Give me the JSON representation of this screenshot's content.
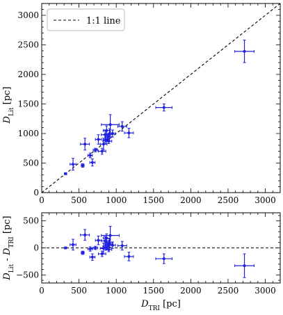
{
  "chart_data": [
    {
      "type": "scatter",
      "title": "",
      "xlabel": "",
      "ylabel": {
        "main": "D",
        "sub": "Lit",
        "unit": " [pc]"
      },
      "xlim": [
        0,
        3200
      ],
      "ylim": [
        0,
        3200
      ],
      "xticks": [
        0,
        500,
        1000,
        1500,
        2000,
        2500,
        3000
      ],
      "xtick_labels": [
        "0",
        "500",
        "1000",
        "1500",
        "2000",
        "2500",
        "3000"
      ],
      "yticks": [
        0,
        500,
        1000,
        1500,
        2000,
        2500,
        3000
      ],
      "ytick_labels": [
        "0",
        "500",
        "1000",
        "1500",
        "2000",
        "2500",
        "3000"
      ],
      "grid": false,
      "legend": {
        "position": "top-left",
        "entries": [
          {
            "label": "1:1 line",
            "style": "dashed",
            "color": "#000000"
          }
        ]
      },
      "reference_line": {
        "label": "1:1 line",
        "from": [
          0,
          0
        ],
        "to": [
          3200,
          3200
        ]
      },
      "series": [
        {
          "color": "#1f1fe0",
          "points": [
            {
              "x": 320,
              "y": 320,
              "xerr": 15,
              "yerr": 15
            },
            {
              "x": 420,
              "y": 480,
              "xerr": 40,
              "yerr": 100
            },
            {
              "x": 550,
              "y": 460,
              "xerr": 20,
              "yerr": 30
            },
            {
              "x": 580,
              "y": 820,
              "xerr": 60,
              "yerr": 100
            },
            {
              "x": 650,
              "y": 630,
              "xerr": 30,
              "yerr": 40
            },
            {
              "x": 680,
              "y": 510,
              "xerr": 35,
              "yerr": 60
            },
            {
              "x": 720,
              "y": 720,
              "xerr": 30,
              "yerr": 30
            },
            {
              "x": 760,
              "y": 900,
              "xerr": 40,
              "yerr": 80
            },
            {
              "x": 810,
              "y": 700,
              "xerr": 50,
              "yerr": 50
            },
            {
              "x": 830,
              "y": 820,
              "xerr": 45,
              "yerr": 100
            },
            {
              "x": 850,
              "y": 980,
              "xerr": 50,
              "yerr": 80
            },
            {
              "x": 860,
              "y": 880,
              "xerr": 40,
              "yerr": 60
            },
            {
              "x": 870,
              "y": 1050,
              "xerr": 45,
              "yerr": 80
            },
            {
              "x": 880,
              "y": 900,
              "xerr": 30,
              "yerr": 40
            },
            {
              "x": 890,
              "y": 950,
              "xerr": 35,
              "yerr": 50
            },
            {
              "x": 900,
              "y": 870,
              "xerr": 40,
              "yerr": 40
            },
            {
              "x": 910,
              "y": 1000,
              "xerr": 45,
              "yerr": 80
            },
            {
              "x": 920,
              "y": 1150,
              "xerr": 120,
              "yerr": 170
            },
            {
              "x": 950,
              "y": 1000,
              "xerr": 40,
              "yerr": 60
            },
            {
              "x": 1080,
              "y": 1120,
              "xerr": 60,
              "yerr": 80
            },
            {
              "x": 1170,
              "y": 1010,
              "xerr": 60,
              "yerr": 80
            },
            {
              "x": 1640,
              "y": 1440,
              "xerr": 110,
              "yerr": 60
            },
            {
              "x": 2720,
              "y": 2390,
              "xerr": 130,
              "yerr": 190
            }
          ]
        }
      ]
    },
    {
      "type": "scatter",
      "title": "",
      "xlabel": {
        "main": "D",
        "sub": "TRI",
        "unit": " [pc]"
      },
      "ylabel": {
        "main": "D",
        "sub": "Lit",
        "mid": " - D",
        "sub2": "TRI",
        "unit": " [pc]"
      },
      "xlim": [
        0,
        3200
      ],
      "ylim": [
        -650,
        650
      ],
      "xticks": [
        0,
        500,
        1000,
        1500,
        2000,
        2500,
        3000
      ],
      "xtick_labels": [
        "0",
        "500",
        "1000",
        "1500",
        "2000",
        "2500",
        "3000"
      ],
      "yticks": [
        -500,
        0,
        500
      ],
      "ytick_labels": [
        "−500",
        "0",
        "500"
      ],
      "grid": false,
      "reference_line": {
        "label": "",
        "from": [
          0,
          0
        ],
        "to": [
          3200,
          0
        ]
      },
      "series": [
        {
          "color": "#1f1fe0",
          "points": [
            {
              "x": 320,
              "y": 0,
              "xerr": 15,
              "yerr": 15
            },
            {
              "x": 420,
              "y": 60,
              "xerr": 40,
              "yerr": 100
            },
            {
              "x": 550,
              "y": -90,
              "xerr": 20,
              "yerr": 30
            },
            {
              "x": 580,
              "y": 240,
              "xerr": 60,
              "yerr": 100
            },
            {
              "x": 650,
              "y": -20,
              "xerr": 30,
              "yerr": 40
            },
            {
              "x": 680,
              "y": -170,
              "xerr": 35,
              "yerr": 60
            },
            {
              "x": 720,
              "y": 0,
              "xerr": 30,
              "yerr": 30
            },
            {
              "x": 760,
              "y": 140,
              "xerr": 40,
              "yerr": 80
            },
            {
              "x": 810,
              "y": -110,
              "xerr": 50,
              "yerr": 50
            },
            {
              "x": 830,
              "y": -10,
              "xerr": 45,
              "yerr": 100
            },
            {
              "x": 850,
              "y": 130,
              "xerr": 50,
              "yerr": 80
            },
            {
              "x": 860,
              "y": 20,
              "xerr": 40,
              "yerr": 60
            },
            {
              "x": 870,
              "y": 180,
              "xerr": 45,
              "yerr": 80
            },
            {
              "x": 880,
              "y": 20,
              "xerr": 30,
              "yerr": 40
            },
            {
              "x": 890,
              "y": 60,
              "xerr": 35,
              "yerr": 50
            },
            {
              "x": 900,
              "y": -30,
              "xerr": 40,
              "yerr": 40
            },
            {
              "x": 910,
              "y": 90,
              "xerr": 45,
              "yerr": 80
            },
            {
              "x": 920,
              "y": 230,
              "xerr": 120,
              "yerr": 170
            },
            {
              "x": 950,
              "y": 50,
              "xerr": 40,
              "yerr": 60
            },
            {
              "x": 1080,
              "y": 40,
              "xerr": 60,
              "yerr": 80
            },
            {
              "x": 1170,
              "y": -160,
              "xerr": 60,
              "yerr": 80
            },
            {
              "x": 1640,
              "y": -200,
              "xerr": 110,
              "yerr": 90
            },
            {
              "x": 2720,
              "y": -330,
              "xerr": 130,
              "yerr": 220
            }
          ]
        }
      ]
    }
  ]
}
